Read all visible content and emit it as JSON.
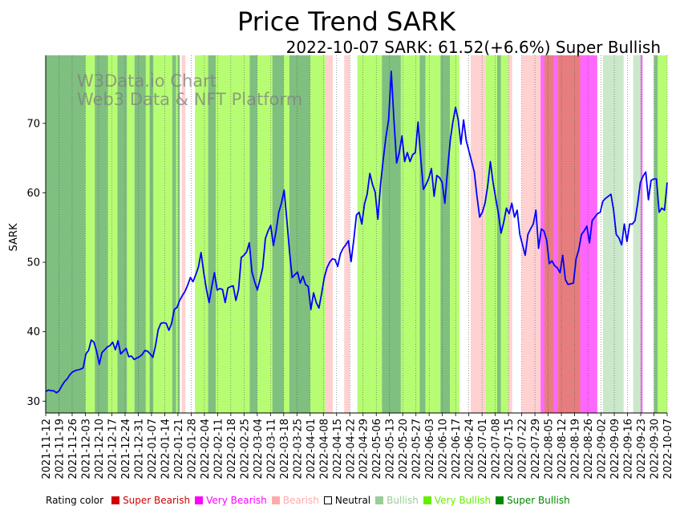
{
  "chart_data": {
    "type": "line",
    "title": "Price Trend SARK",
    "subtitle": "2022-10-07 SARK: 61.52(+6.6%) Super Bullish",
    "ylabel": "SARK",
    "xlabel": "",
    "ylim": [
      28.3,
      79.8
    ],
    "yticks": [
      30,
      40,
      50,
      60,
      70
    ],
    "watermark": [
      "W3Data.io Chart",
      "Web3 Data & NFT Platform"
    ],
    "x_ticks": [
      "2021-11-12",
      "2021-11-19",
      "2021-11-26",
      "2021-12-03",
      "2021-12-10",
      "2021-12-17",
      "2021-12-24",
      "2021-12-31",
      "2022-01-07",
      "2022-01-14",
      "2022-01-21",
      "2022-01-28",
      "2022-02-04",
      "2022-02-11",
      "2022-02-18",
      "2022-02-25",
      "2022-03-04",
      "2022-03-11",
      "2022-03-18",
      "2022-03-25",
      "2022-04-01",
      "2022-04-08",
      "2022-04-15",
      "2022-04-22",
      "2022-04-29",
      "2022-05-06",
      "2022-05-13",
      "2022-05-20",
      "2022-05-27",
      "2022-06-03",
      "2022-06-10",
      "2022-06-17",
      "2022-06-24",
      "2022-07-01",
      "2022-07-08",
      "2022-07-15",
      "2022-07-22",
      "2022-07-29",
      "2022-08-05",
      "2022-08-12",
      "2022-08-19",
      "2022-08-26",
      "2022-09-02",
      "2022-09-09",
      "2022-09-16",
      "2022-09-23",
      "2022-09-30",
      "2022-10-07"
    ],
    "series": [
      {
        "name": "SARK",
        "color": "#0000ff",
        "values": [
          31.4,
          31.6,
          31.5,
          31.5,
          31.2,
          31.5,
          32.2,
          32.8,
          33.2,
          33.8,
          34.2,
          34.4,
          34.5,
          34.6,
          34.8,
          36.8,
          37.3,
          38.8,
          38.5,
          37.2,
          35.3,
          37.0,
          37.4,
          37.8,
          38.0,
          38.5,
          37.4,
          38.7,
          36.8,
          37.2,
          37.6,
          36.4,
          36.5,
          36.0,
          36.2,
          36.4,
          36.7,
          37.3,
          37.2,
          36.8,
          36.3,
          38.0,
          40.3,
          41.2,
          41.3,
          41.2,
          40.2,
          41.2,
          43.2,
          43.5,
          44.5,
          45.2,
          45.8,
          46.7,
          47.8,
          47.2,
          48.2,
          49.3,
          51.4,
          48.5,
          46.1,
          44.2,
          46.5,
          48.5,
          46.0,
          46.2,
          46.1,
          44.2,
          46.3,
          46.5,
          46.6,
          44.5,
          46.1,
          50.7,
          51.0,
          51.5,
          52.8,
          48.6,
          47.2,
          46.0,
          47.5,
          49.2,
          53.4,
          54.5,
          55.3,
          52.4,
          54.5,
          57.2,
          58.5,
          60.4,
          56.2,
          51.6,
          47.8,
          48.2,
          48.6,
          47.0,
          48.0,
          46.8,
          46.5,
          43.2,
          45.6,
          44.2,
          43.4,
          45.5,
          47.8,
          49.2,
          50.0,
          50.5,
          50.4,
          49.4,
          51.2,
          52.0,
          52.5,
          53.1,
          50.1,
          53.2,
          56.8,
          57.2,
          55.5,
          58.4,
          59.8,
          62.8,
          61.2,
          60.1,
          56.2,
          61.2,
          64.8,
          68.0,
          70.5,
          77.5,
          70.5,
          64.3,
          65.8,
          68.2,
          64.5,
          65.8,
          64.5,
          65.5,
          65.8,
          70.2,
          65.0,
          60.5,
          61.2,
          62.1,
          63.5,
          59.5,
          62.5,
          62.2,
          61.5,
          58.5,
          63.2,
          67.5,
          70.2,
          72.3,
          70.5,
          67.0,
          70.5,
          67.5,
          66.0,
          64.5,
          63.0,
          59.5,
          56.5,
          57.2,
          58.5,
          61.0,
          64.5,
          61.5,
          59.2,
          57.0,
          54.2,
          55.8,
          57.8,
          57.0,
          58.5,
          56.5,
          57.5,
          54.0,
          52.5,
          51.0,
          54.0,
          54.8,
          55.5,
          57.5,
          52.0,
          54.8,
          54.5,
          53.2,
          49.8,
          50.2,
          49.5,
          49.2,
          48.5,
          51.0,
          47.5,
          46.8,
          46.9,
          47.0,
          50.5,
          51.8,
          54.0,
          54.5,
          55.2,
          52.8,
          56.0,
          56.5,
          57.0,
          57.2,
          58.8,
          59.2,
          59.5,
          59.8,
          57.5,
          54.0,
          53.5,
          52.5,
          55.5,
          53.0,
          55.5,
          55.5,
          56.0,
          58.5,
          61.5,
          62.4,
          63.0,
          59.0,
          61.8,
          62.0,
          62.0,
          57.2,
          57.8,
          57.5,
          61.5
        ]
      }
    ],
    "rating_bands": [
      {
        "from_day": 0,
        "to_day": 4,
        "rating": "Super Bullish"
      },
      {
        "from_day": 4,
        "to_day": 21,
        "rating": "Super Bullish"
      },
      {
        "from_day": 21,
        "to_day": 26,
        "rating": "Very Bullish"
      },
      {
        "from_day": 26,
        "to_day": 33,
        "rating": "Super Bullish"
      },
      {
        "from_day": 33,
        "to_day": 38,
        "rating": "Very Bullish"
      },
      {
        "from_day": 38,
        "to_day": 43,
        "rating": "Super Bullish"
      },
      {
        "from_day": 43,
        "to_day": 47,
        "rating": "Very Bullish"
      },
      {
        "from_day": 47,
        "to_day": 53,
        "rating": "Super Bullish"
      },
      {
        "from_day": 53,
        "to_day": 55,
        "rating": "Very Bullish"
      },
      {
        "from_day": 55,
        "to_day": 57,
        "rating": "Super Bullish"
      },
      {
        "from_day": 57,
        "to_day": 67,
        "rating": "Very Bullish"
      },
      {
        "from_day": 67,
        "to_day": 69,
        "rating": "Super Bullish"
      },
      {
        "from_day": 69,
        "to_day": 70,
        "rating": "Very Bullish"
      },
      {
        "from_day": 70,
        "to_day": 71,
        "rating": "Super Bullish"
      },
      {
        "from_day": 71,
        "to_day": 72,
        "rating": "Neutral"
      },
      {
        "from_day": 72,
        "to_day": 74,
        "rating": "Bearish"
      },
      {
        "from_day": 74,
        "to_day": 79,
        "rating": "Neutral"
      },
      {
        "from_day": 79,
        "to_day": 86,
        "rating": "Very Bullish"
      },
      {
        "from_day": 86,
        "to_day": 90,
        "rating": "Super Bullish"
      },
      {
        "from_day": 90,
        "to_day": 108,
        "rating": "Very Bullish"
      },
      {
        "from_day": 108,
        "to_day": 112,
        "rating": "Super Bullish"
      },
      {
        "from_day": 112,
        "to_day": 120,
        "rating": "Very Bullish"
      },
      {
        "from_day": 120,
        "to_day": 126,
        "rating": "Super Bullish"
      },
      {
        "from_day": 126,
        "to_day": 129,
        "rating": "Very Bullish"
      },
      {
        "from_day": 129,
        "to_day": 140,
        "rating": "Super Bullish"
      },
      {
        "from_day": 140,
        "to_day": 148,
        "rating": "Very Bullish"
      },
      {
        "from_day": 148,
        "to_day": 152,
        "rating": "Bearish"
      },
      {
        "from_day": 152,
        "to_day": 158,
        "rating": "Neutral"
      },
      {
        "from_day": 158,
        "to_day": 161,
        "rating": "Bearish"
      },
      {
        "from_day": 161,
        "to_day": 165,
        "rating": "Neutral"
      },
      {
        "from_day": 165,
        "to_day": 178,
        "rating": "Very Bullish"
      },
      {
        "from_day": 178,
        "to_day": 188,
        "rating": "Super Bullish"
      },
      {
        "from_day": 188,
        "to_day": 198,
        "rating": "Very Bullish"
      },
      {
        "from_day": 198,
        "to_day": 201,
        "rating": "Super Bullish"
      },
      {
        "from_day": 201,
        "to_day": 209,
        "rating": "Very Bullish"
      },
      {
        "from_day": 209,
        "to_day": 214,
        "rating": "Super Bullish"
      },
      {
        "from_day": 214,
        "to_day": 219,
        "rating": "Very Bullish"
      },
      {
        "from_day": 219,
        "to_day": 225,
        "rating": "Neutral"
      },
      {
        "from_day": 225,
        "to_day": 233,
        "rating": "Bearish"
      },
      {
        "from_day": 233,
        "to_day": 239,
        "rating": "Very Bullish"
      },
      {
        "from_day": 239,
        "to_day": 241,
        "rating": "Super Bullish"
      },
      {
        "from_day": 241,
        "to_day": 245,
        "rating": "Very Bullish"
      },
      {
        "from_day": 245,
        "to_day": 247,
        "rating": "Bearish"
      },
      {
        "from_day": 247,
        "to_day": 252,
        "rating": "Neutral"
      },
      {
        "from_day": 252,
        "to_day": 262,
        "rating": "Bearish"
      },
      {
        "from_day": 262,
        "to_day": 264,
        "rating": "Very Bearish"
      },
      {
        "from_day": 264,
        "to_day": 269,
        "rating": "Super Bearish"
      },
      {
        "from_day": 269,
        "to_day": 271,
        "rating": "Very Bearish"
      },
      {
        "from_day": 271,
        "to_day": 283,
        "rating": "Super Bearish"
      },
      {
        "from_day": 283,
        "to_day": 287,
        "rating": "Very Bearish"
      },
      {
        "from_day": 287,
        "to_day": 292,
        "rating": "Very Bearish"
      },
      {
        "from_day": 292,
        "to_day": 295,
        "rating": "Neutral"
      },
      {
        "from_day": 295,
        "to_day": 306,
        "rating": "Bullish"
      },
      {
        "from_day": 306,
        "to_day": 311,
        "rating": "Neutral"
      },
      {
        "from_day": 311,
        "to_day": 315,
        "rating": "Bullish"
      },
      {
        "from_day": 315,
        "to_day": 316,
        "rating": "Very Bearish"
      },
      {
        "from_day": 316,
        "to_day": 322,
        "rating": "Neutral"
      },
      {
        "from_day": 322,
        "to_day": 324,
        "rating": "Super Bullish"
      },
      {
        "from_day": 324,
        "to_day": 329,
        "rating": "Very Bullish"
      },
      {
        "from_day": 329,
        "to_day": 331,
        "rating": "Super Bullish"
      }
    ],
    "rating_colors": {
      "Super Bearish": "#d62728",
      "Very Bearish": "#ff00ff",
      "Bearish": "#ffb3b3",
      "Neutral": "#ffffff",
      "Bullish": "#a8d8a8",
      "Very Bullish": "#7cfc00",
      "Super Bullish": "#008000"
    },
    "legend": {
      "title": "Rating color",
      "items": [
        {
          "label": "Super Bearish",
          "color": "#d00000"
        },
        {
          "label": "Very Bearish",
          "color": "#ff00ff"
        },
        {
          "label": "Bearish",
          "color": "#ffaaaa"
        },
        {
          "label": "Neutral",
          "color": "#000000"
        },
        {
          "label": "Bullish",
          "color": "#99cc99"
        },
        {
          "label": "Very Bullish",
          "color": "#66ee00"
        },
        {
          "label": "Super Bullish",
          "color": "#008800"
        }
      ]
    }
  }
}
